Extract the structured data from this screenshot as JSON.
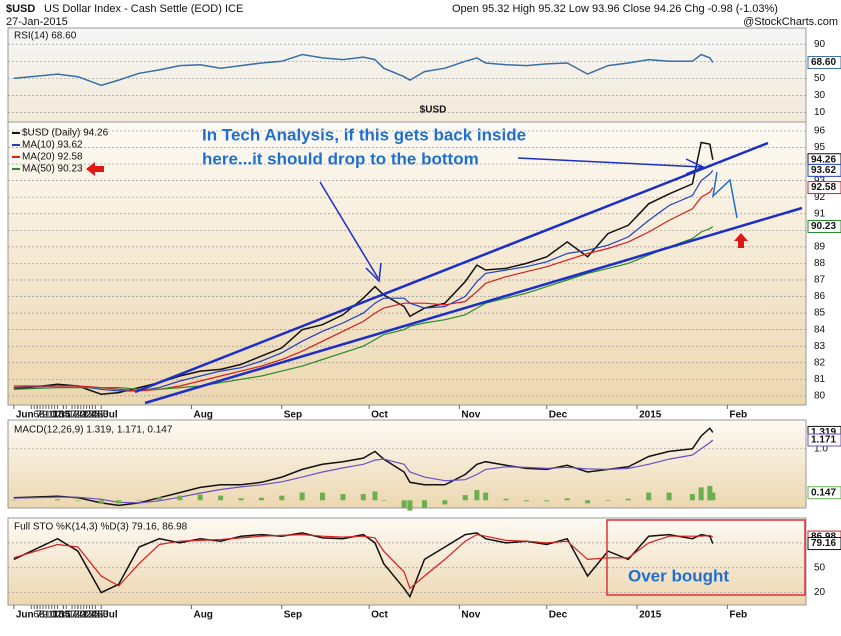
{
  "header": {
    "symbol": "$USD",
    "name": "US Dollar Index - Cash Settle (EOD) ICE",
    "date": "27-Jan-2015",
    "quote": "Open 95.32   High 95.32   Low 93.96   Close 94.26   Chg -0.98 (-1.03%)",
    "source": "@StockCharts.com"
  },
  "chart_data": [
    {
      "type": "line",
      "title": "RSI(14) 68.60",
      "x": [
        0,
        15,
        22,
        30,
        36,
        43,
        50,
        57,
        64,
        71,
        78,
        85,
        92,
        99,
        106,
        113,
        120,
        124,
        127,
        134,
        136,
        141,
        148,
        155,
        159,
        162,
        169,
        176,
        183,
        190,
        197,
        204,
        211,
        218,
        225,
        233,
        236,
        239,
        240
      ],
      "xlim": [
        -2,
        272
      ],
      "ylim": [
        -1,
        109
      ],
      "yticks": [
        10,
        30,
        50,
        70,
        90
      ],
      "series": [
        {
          "color": "#3a6ea5",
          "values": [
            50,
            55,
            52,
            42,
            48,
            56,
            60,
            65,
            66,
            62,
            65,
            68,
            70,
            78,
            74,
            72,
            75,
            72,
            62,
            52,
            48,
            58,
            62,
            70,
            74,
            68,
            66,
            65,
            67,
            68,
            55,
            65,
            68,
            72,
            70,
            70,
            78,
            74,
            68.6
          ]
        }
      ],
      "tags": [
        {
          "value": 68.6,
          "label": "68.60",
          "color": "#3a6ea5"
        }
      ]
    },
    {
      "type": "line",
      "title": "$USD",
      "x": [
        0,
        15,
        22,
        30,
        36,
        43,
        50,
        57,
        64,
        71,
        78,
        85,
        92,
        99,
        106,
        113,
        120,
        124,
        127,
        134,
        136,
        141,
        148,
        155,
        159,
        162,
        169,
        176,
        183,
        190,
        197,
        204,
        211,
        218,
        225,
        233,
        236,
        239,
        240
      ],
      "xlim": [
        -2,
        272
      ],
      "ylim": [
        79.45,
        96.54
      ],
      "yticks": [
        80,
        81,
        82,
        83,
        84,
        85,
        86,
        87,
        88,
        89,
        90,
        91,
        92,
        93,
        94,
        95,
        96
      ],
      "xticks": [
        {
          "value": 0,
          "label": "Jun"
        },
        8,
        15,
        22,
        {
          "value": 30,
          "label": "Jul"
        },
        7,
        14,
        21,
        28,
        {
          "value": 61,
          "label": "Aug"
        },
        11,
        18,
        25,
        {
          "value": 92,
          "label": "Sep"
        },
        8,
        15,
        22,
        {
          "value": 122,
          "label": "Oct"
        },
        6,
        13,
        20,
        27,
        {
          "value": 153,
          "label": "Nov"
        },
        10,
        17,
        24,
        {
          "value": 183,
          "label": "Dec"
        },
        8,
        15,
        22,
        {
          "value": 214,
          "label": "2015"
        },
        12,
        20,
        26,
        {
          "value": 245,
          "label": "Feb"
        },
        9,
        17,
        23
      ],
      "series": [
        {
          "name": "$USD (Daily) 94.26",
          "color": "#111111",
          "values": [
            80.4,
            80.7,
            80.6,
            80.1,
            80.2,
            80.5,
            80.8,
            81.2,
            81.5,
            81.6,
            81.9,
            82.4,
            82.9,
            84.0,
            84.3,
            84.9,
            85.9,
            86.6,
            86.1,
            85.4,
            84.8,
            85.3,
            85.6,
            86.9,
            87.9,
            87.6,
            87.7,
            88.0,
            88.4,
            89.3,
            88.4,
            89.8,
            90.3,
            91.6,
            92.2,
            92.8,
            95.3,
            95.2,
            94.26
          ]
        },
        {
          "name": "MA(10) 93.62",
          "color": "#1f3fc0",
          "values": [
            80.5,
            80.6,
            80.6,
            80.4,
            80.3,
            80.3,
            80.5,
            80.9,
            81.2,
            81.5,
            81.7,
            82.1,
            82.6,
            83.3,
            83.9,
            84.4,
            85.0,
            85.6,
            85.9,
            85.9,
            85.6,
            85.3,
            85.4,
            86.0,
            86.9,
            87.4,
            87.6,
            87.8,
            88.1,
            88.6,
            88.8,
            89.1,
            89.6,
            90.6,
            91.5,
            92.1,
            93.0,
            93.4,
            93.62
          ]
        },
        {
          "name": "MA(20) 92.58",
          "color": "#d42020",
          "values": [
            80.6,
            80.6,
            80.6,
            80.5,
            80.4,
            80.3,
            80.4,
            80.6,
            80.9,
            81.2,
            81.5,
            81.8,
            82.2,
            82.7,
            83.3,
            83.9,
            84.5,
            85.0,
            85.3,
            85.6,
            85.6,
            85.6,
            85.5,
            85.7,
            86.3,
            86.8,
            87.2,
            87.5,
            87.8,
            88.2,
            88.6,
            88.9,
            89.3,
            89.9,
            90.6,
            91.3,
            92.0,
            92.3,
            92.58
          ]
        },
        {
          "name": "MA(50) 90.23",
          "color": "#2a8a2a",
          "values": [
            80.4,
            80.5,
            80.5,
            80.5,
            80.5,
            80.4,
            80.4,
            80.5,
            80.6,
            80.8,
            81.0,
            81.2,
            81.5,
            81.8,
            82.2,
            82.6,
            83.0,
            83.4,
            83.7,
            84.0,
            84.2,
            84.4,
            84.6,
            84.9,
            85.3,
            85.6,
            85.9,
            86.2,
            86.6,
            87.0,
            87.4,
            87.7,
            88.0,
            88.5,
            89.0,
            89.5,
            89.9,
            90.1,
            90.23
          ]
        }
      ],
      "tags": [
        {
          "value": 94.26,
          "label": "94.26",
          "color": "#111111"
        },
        {
          "value": 93.62,
          "label": "93.62",
          "color": "#1f3fc0"
        },
        {
          "value": 92.58,
          "label": "92.58",
          "color": "#d42020"
        },
        {
          "value": 90.23,
          "label": "90.23",
          "color": "#2a8a2a"
        }
      ],
      "annotations": [
        "In Tech Analysis,  if this gets back inside",
        "here...it should drop to the bottom"
      ]
    },
    {
      "type": "line",
      "title": "MACD(12,26,9) 1.319, 1.171, 0.147",
      "x": [
        0,
        15,
        22,
        30,
        36,
        43,
        50,
        57,
        64,
        71,
        78,
        85,
        92,
        99,
        106,
        113,
        120,
        124,
        127,
        134,
        136,
        141,
        148,
        155,
        159,
        162,
        169,
        176,
        183,
        190,
        197,
        204,
        211,
        218,
        225,
        233,
        236,
        239,
        240
      ],
      "xlim": [
        -2,
        272
      ],
      "ylim": [
        -0.15,
        1.56
      ],
      "yticks": [
        {
          "value": 1,
          "label": "1.0"
        }
      ],
      "series": [
        {
          "color": "#111111",
          "values": [
            0.05,
            0.08,
            0.05,
            -0.05,
            -0.1,
            -0.05,
            0.05,
            0.15,
            0.25,
            0.3,
            0.3,
            0.35,
            0.45,
            0.6,
            0.7,
            0.75,
            0.82,
            0.95,
            0.8,
            0.55,
            0.35,
            0.3,
            0.3,
            0.5,
            0.7,
            0.75,
            0.68,
            0.62,
            0.6,
            0.68,
            0.55,
            0.6,
            0.65,
            0.85,
            0.95,
            1.0,
            1.25,
            1.4,
            1.319
          ]
        },
        {
          "color": "#6a4fc8",
          "values": [
            0.04,
            0.06,
            0.06,
            0.02,
            -0.04,
            -0.05,
            -0.01,
            0.06,
            0.14,
            0.21,
            0.26,
            0.3,
            0.36,
            0.45,
            0.55,
            0.63,
            0.7,
            0.78,
            0.8,
            0.7,
            0.55,
            0.45,
            0.38,
            0.4,
            0.5,
            0.6,
            0.65,
            0.64,
            0.62,
            0.64,
            0.61,
            0.6,
            0.62,
            0.7,
            0.8,
            0.88,
            1.0,
            1.12,
            1.171
          ]
        },
        {
          "type": "bar",
          "color": "#6ab04c",
          "values": [
            0.01,
            0.02,
            -0.01,
            -0.07,
            -0.06,
            0,
            0.06,
            0.09,
            0.11,
            0.09,
            0.04,
            0.05,
            0.09,
            0.15,
            0.15,
            0.12,
            0.12,
            0.17,
            0,
            -0.15,
            -0.2,
            -0.15,
            -0.08,
            0.1,
            0.2,
            0.15,
            0.03,
            -0.02,
            -0.02,
            0.04,
            -0.06,
            0,
            0.03,
            0.15,
            0.15,
            0.12,
            0.25,
            0.28,
            0.147
          ]
        }
      ],
      "tags": [
        {
          "value": 1.319,
          "label": "1.319",
          "color": "#111111"
        },
        {
          "value": 1.171,
          "label": "1.171",
          "color": "#6a4fc8"
        },
        {
          "value": 0.147,
          "label": "0.147",
          "color": "#6ab04c"
        }
      ]
    },
    {
      "type": "line",
      "title": "Full STO %K(14,3) %D(3) 79.16, 86.98",
      "x": [
        0,
        15,
        22,
        30,
        36,
        43,
        50,
        57,
        64,
        71,
        78,
        85,
        92,
        99,
        106,
        113,
        120,
        124,
        127,
        134,
        136,
        141,
        148,
        155,
        159,
        162,
        169,
        176,
        183,
        190,
        197,
        204,
        211,
        218,
        225,
        233,
        236,
        239,
        240
      ],
      "xlim": [
        -2,
        272
      ],
      "ylim": [
        5,
        110
      ],
      "yticks": [
        20,
        50,
        80
      ],
      "xticks": [
        {
          "value": 0,
          "label": "Jun"
        },
        8,
        15,
        22,
        {
          "value": 30,
          "label": "Jul"
        },
        7,
        14,
        21,
        28,
        {
          "value": 61,
          "label": "Aug"
        },
        11,
        18,
        25,
        {
          "value": 92,
          "label": "Sep"
        },
        8,
        15,
        22,
        {
          "value": 122,
          "label": "Oct"
        },
        6,
        13,
        20,
        27,
        {
          "value": 153,
          "label": "Nov"
        },
        10,
        17,
        24,
        {
          "value": 183,
          "label": "Dec"
        },
        8,
        15,
        22,
        {
          "value": 214,
          "label": "2015"
        },
        12,
        20,
        26,
        {
          "value": 245,
          "label": "Feb"
        },
        9,
        17,
        23
      ],
      "series": [
        {
          "color": "#111111",
          "values": [
            60,
            85,
            70,
            20,
            30,
            75,
            85,
            80,
            85,
            82,
            88,
            90,
            88,
            92,
            86,
            85,
            90,
            80,
            55,
            25,
            15,
            60,
            75,
            90,
            92,
            85,
            80,
            82,
            78,
            85,
            40,
            70,
            60,
            88,
            90,
            85,
            90,
            88,
            79.16
          ]
        },
        {
          "color": "#d42020",
          "values": [
            62,
            78,
            75,
            40,
            28,
            55,
            78,
            82,
            83,
            84,
            86,
            88,
            89,
            90,
            88,
            87,
            88,
            86,
            70,
            45,
            25,
            40,
            60,
            82,
            90,
            88,
            83,
            82,
            80,
            82,
            60,
            62,
            62,
            80,
            88,
            88,
            88,
            89,
            86.98
          ]
        }
      ],
      "tags": [
        {
          "value": 86.98,
          "label": "86.98",
          "color": "#d42020"
        },
        {
          "value": 79.16,
          "label": "79.16",
          "color": "#111111"
        }
      ],
      "annotations": [
        "Over bought"
      ]
    }
  ]
}
